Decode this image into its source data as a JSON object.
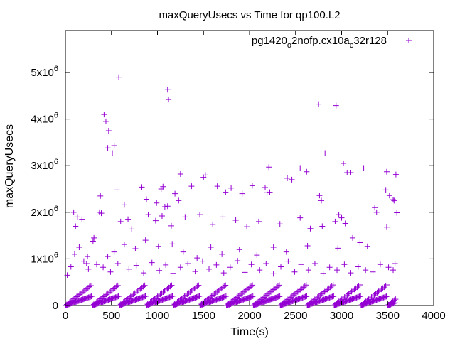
{
  "chart_data": {
    "type": "scatter",
    "title": "maxQueryUsecs vs Time for qp100.L2",
    "xlabel": "Time(s)",
    "ylabel": "maxQueryUsecs",
    "xlim": [
      0,
      4000
    ],
    "ylim": [
      0,
      5900000
    ],
    "x_ticks": [
      0,
      500,
      1000,
      1500,
      2000,
      2500,
      3000,
      3500,
      4000
    ],
    "y_ticks": [
      {
        "value": 0,
        "mantissa": "0",
        "exp": ""
      },
      {
        "value": 1000000,
        "mantissa": "1x10",
        "exp": "6"
      },
      {
        "value": 2000000,
        "mantissa": "2x10",
        "exp": "6"
      },
      {
        "value": 3000000,
        "mantissa": "3x10",
        "exp": "6"
      },
      {
        "value": 4000000,
        "mantissa": "4x10",
        "exp": "6"
      },
      {
        "value": 5000000,
        "mantissa": "5x10",
        "exp": "6"
      }
    ],
    "grid": false,
    "legend_position": "top-right",
    "marker": "plus",
    "series": [
      {
        "name": "pg1420_o2nofp.cx10a_c32r128",
        "name_parts": [
          {
            "t": "pg1420",
            "sub": false
          },
          {
            "t": "o",
            "sub": true
          },
          {
            "t": "2nofp.cx10a",
            "sub": false
          },
          {
            "t": "c",
            "sub": true
          },
          {
            "t": "32r128",
            "sub": false
          }
        ],
        "color": "#9400d3",
        "points": [
          [
            580,
            4900000
          ],
          [
            1110,
            4630000
          ],
          [
            1120,
            4420000
          ],
          [
            420,
            4100000
          ],
          [
            440,
            3950000
          ],
          [
            470,
            3750000
          ],
          [
            530,
            3430000
          ],
          [
            460,
            3380000
          ],
          [
            510,
            3270000
          ],
          [
            2750,
            4320000
          ],
          [
            2940,
            4290000
          ],
          [
            2820,
            3270000
          ],
          [
            3020,
            3050000
          ],
          [
            3060,
            2850000
          ],
          [
            3100,
            2850000
          ],
          [
            3240,
            2950000
          ],
          [
            3490,
            2870000
          ],
          [
            3590,
            2810000
          ],
          [
            2550,
            2950000
          ],
          [
            2620,
            2870000
          ],
          [
            2210,
            2970000
          ],
          [
            1250,
            2820000
          ],
          [
            1520,
            2800000
          ],
          [
            1500,
            2750000
          ],
          [
            1370,
            2560000
          ],
          [
            1650,
            2560000
          ],
          [
            1740,
            2430000
          ],
          [
            1800,
            2520000
          ],
          [
            1920,
            2400000
          ],
          [
            2030,
            2570000
          ],
          [
            2170,
            2530000
          ],
          [
            2190,
            2420000
          ],
          [
            2220,
            2430000
          ],
          [
            2410,
            2730000
          ],
          [
            2460,
            2700000
          ],
          [
            2760,
            2360000
          ],
          [
            2780,
            2250000
          ],
          [
            3480,
            2480000
          ],
          [
            3520,
            2360000
          ],
          [
            3570,
            2250000
          ],
          [
            3560,
            2270000
          ],
          [
            380,
            2350000
          ],
          [
            560,
            2480000
          ],
          [
            640,
            2160000
          ],
          [
            830,
            2540000
          ],
          [
            880,
            2280000
          ],
          [
            990,
            2200000
          ],
          [
            1060,
            2550000
          ],
          [
            1040,
            2500000
          ],
          [
            1080,
            2120000
          ],
          [
            1110,
            2130000
          ],
          [
            1190,
            2400000
          ],
          [
            1230,
            2250000
          ],
          [
            90,
            2000000
          ],
          [
            130,
            1900000
          ],
          [
            110,
            1700000
          ],
          [
            180,
            1850000
          ],
          [
            370,
            2000000
          ],
          [
            390,
            1980000
          ],
          [
            600,
            1800000
          ],
          [
            680,
            1850000
          ],
          [
            720,
            1640000
          ],
          [
            900,
            1950000
          ],
          [
            980,
            1820000
          ],
          [
            1050,
            1920000
          ],
          [
            1150,
            1710000
          ],
          [
            1300,
            1900000
          ],
          [
            1460,
            1950000
          ],
          [
            1600,
            1740000
          ],
          [
            1710,
            1900000
          ],
          [
            1850,
            1830000
          ],
          [
            1970,
            1690000
          ],
          [
            2100,
            1800000
          ],
          [
            2330,
            1750000
          ],
          [
            2550,
            1880000
          ],
          [
            2660,
            1650000
          ],
          [
            2790,
            1700000
          ],
          [
            2930,
            1800000
          ],
          [
            2970,
            1950000
          ],
          [
            3000,
            1880000
          ],
          [
            3040,
            1760000
          ],
          [
            3120,
            1450000
          ],
          [
            3360,
            2100000
          ],
          [
            3380,
            2000000
          ],
          [
            3490,
            1680000
          ],
          [
            3600,
            1990000
          ],
          [
            3200,
            1350000
          ],
          [
            3280,
            1270000
          ],
          [
            2960,
            1230000
          ],
          [
            2630,
            1280000
          ],
          [
            2400,
            1150000
          ],
          [
            2260,
            1250000
          ],
          [
            2080,
            1080000
          ],
          [
            1890,
            1200000
          ],
          [
            1700,
            1100000
          ],
          [
            1580,
            1250000
          ],
          [
            1430,
            1020000
          ],
          [
            1280,
            1150000
          ],
          [
            1160,
            1320000
          ],
          [
            1010,
            1270000
          ],
          [
            870,
            1400000
          ],
          [
            760,
            1220000
          ],
          [
            640,
            1310000
          ],
          [
            530,
            1150000
          ],
          [
            460,
            1050000
          ],
          [
            310,
            1450000
          ],
          [
            300,
            1380000
          ],
          [
            240,
            1050000
          ],
          [
            200,
            950000
          ],
          [
            150,
            1250000
          ],
          [
            100,
            1100000
          ],
          [
            60,
            830000
          ],
          [
            20,
            650000
          ],
          [
            230,
            900000
          ],
          [
            250,
            780000
          ],
          [
            340,
            880000
          ],
          [
            410,
            820000
          ],
          [
            490,
            720000
          ],
          [
            570,
            900000
          ],
          [
            690,
            780000
          ],
          [
            770,
            860000
          ],
          [
            850,
            700000
          ],
          [
            940,
            920000
          ],
          [
            1020,
            750000
          ],
          [
            1090,
            870000
          ],
          [
            1170,
            690000
          ],
          [
            1250,
            820000
          ],
          [
            1330,
            900000
          ],
          [
            1410,
            730000
          ],
          [
            1490,
            950000
          ],
          [
            1560,
            780000
          ],
          [
            1640,
            870000
          ],
          [
            1720,
            700000
          ],
          [
            1790,
            820000
          ],
          [
            1870,
            960000
          ],
          [
            1950,
            710000
          ],
          [
            2020,
            880000
          ],
          [
            2110,
            760000
          ],
          [
            2180,
            900000
          ],
          [
            2260,
            680000
          ],
          [
            2340,
            830000
          ],
          [
            2420,
            950000
          ],
          [
            2490,
            720000
          ],
          [
            2560,
            880000
          ],
          [
            2640,
            760000
          ],
          [
            2710,
            900000
          ],
          [
            2800,
            690000
          ],
          [
            2870,
            820000
          ],
          [
            2950,
            760000
          ],
          [
            3030,
            880000
          ],
          [
            3100,
            700000
          ],
          [
            3180,
            830000
          ],
          [
            3260,
            760000
          ],
          [
            3340,
            720000
          ],
          [
            3420,
            880000
          ],
          [
            3510,
            820000
          ],
          [
            3560,
            760000
          ],
          [
            3580,
            900000
          ]
        ]
      }
    ]
  }
}
